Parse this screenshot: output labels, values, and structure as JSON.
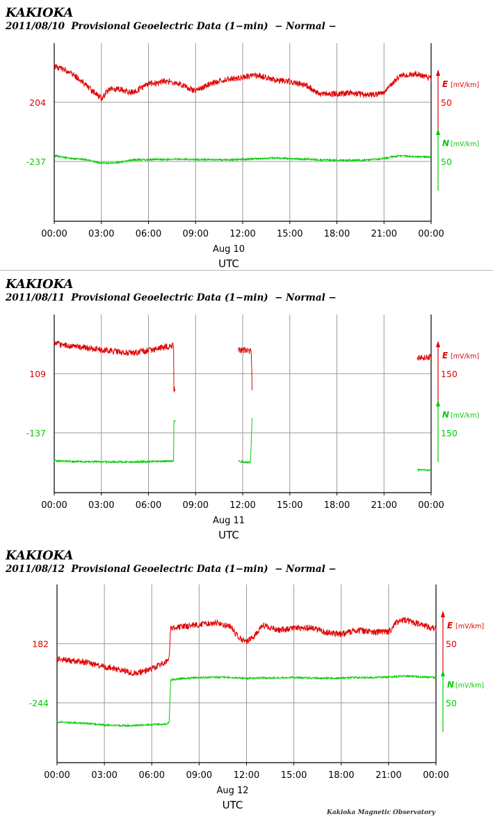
{
  "credit": "Kakioka Magnetic Observatory",
  "chart_data": [
    {
      "type": "line",
      "station": "KAKIOKA",
      "title": "2011/08/10  Provisional Geoelectric Data (1−min)  − Normal −",
      "x_ticks": [
        "00:00",
        "03:00",
        "06:00",
        "09:00",
        "12:00",
        "15:00",
        "18:00",
        "21:00",
        "00:00"
      ],
      "date_label": "Aug 10",
      "xlabel": "UTC",
      "xlim_hours": [
        0,
        24
      ],
      "grid": true,
      "series": [
        {
          "name": "E",
          "unit": "[mV/km]",
          "color": "#e00000",
          "baseline_label": "204",
          "scale_label": "50",
          "gap_hours": [],
          "x_hours": [
            0,
            1,
            2,
            3,
            3.5,
            4,
            5,
            6,
            7,
            8,
            9,
            10,
            11,
            12,
            13,
            14,
            15,
            16,
            17,
            18,
            19,
            20,
            21,
            22,
            23,
            24
          ],
          "values": [
            95,
            80,
            45,
            10,
            35,
            35,
            25,
            48,
            55,
            48,
            30,
            50,
            60,
            65,
            70,
            58,
            55,
            45,
            20,
            22,
            24,
            18,
            25,
            70,
            75,
            62
          ]
        },
        {
          "name": "N",
          "unit": "[mV/km]",
          "color": "#00cc00",
          "baseline_label": "-237",
          "scale_label": "50",
          "gap_hours": [],
          "x_hours": [
            0,
            1,
            2,
            3,
            4,
            5,
            6,
            7,
            8,
            9,
            10,
            11,
            12,
            13,
            14,
            15,
            16,
            17,
            18,
            19,
            20,
            21,
            22,
            23,
            24
          ],
          "values": [
            15,
            8,
            5,
            -5,
            -3,
            4,
            5,
            5,
            6,
            5,
            5,
            4,
            6,
            7,
            9,
            7,
            6,
            4,
            3,
            3,
            4,
            8,
            15,
            12,
            12
          ]
        }
      ]
    },
    {
      "type": "line",
      "station": "KAKIOKA",
      "title": "2011/08/11  Provisional Geoelectric Data (1−min)  − Normal −",
      "x_ticks": [
        "00:00",
        "03:00",
        "06:00",
        "09:00",
        "12:00",
        "15:00",
        "18:00",
        "21:00",
        "00:00"
      ],
      "date_label": "Aug 11",
      "xlabel": "UTC",
      "xlim_hours": [
        0,
        24
      ],
      "grid": true,
      "series": [
        {
          "name": "E",
          "unit": "[mV/km]",
          "color": "#e00000",
          "baseline_label": "109",
          "scale_label": "150",
          "gap_hours": [
            [
              7.7,
              11.7
            ],
            [
              12.6,
              23.1
            ]
          ],
          "x_hours": [
            0,
            1,
            2,
            3,
            4,
            5,
            6,
            7,
            7.6,
            7.62,
            11.7,
            12.5,
            12.55,
            12.6,
            23.1,
            23.5,
            24
          ],
          "values": [
            113,
            105,
            98,
            90,
            82,
            78,
            88,
            100,
            108,
            -60,
            90,
            85,
            88,
            -60,
            60,
            60,
            63
          ]
        },
        {
          "name": "N",
          "unit": "[mV/km]",
          "color": "#00cc00",
          "baseline_label": "-137",
          "scale_label": "150",
          "gap_hours": [
            [
              7.7,
              11.7
            ],
            [
              12.6,
              23.1
            ]
          ],
          "x_hours": [
            0,
            1,
            2,
            3,
            4,
            5,
            6,
            7,
            7.6,
            7.62,
            11.7,
            12.4,
            12.5,
            12.6,
            23.1,
            24
          ],
          "values": [
            -106,
            -108,
            -109,
            -110,
            -110,
            -110,
            -109,
            -108,
            -107,
            46,
            -108,
            -112,
            -112,
            56,
            -140,
            -142
          ]
        }
      ]
    },
    {
      "type": "line",
      "station": "KAKIOKA",
      "title": "2011/08/12  Provisional Geoelectric Data (1−min)  − Normal −",
      "x_ticks": [
        "00:00",
        "03:00",
        "06:00",
        "09:00",
        "12:00",
        "15:00",
        "18:00",
        "21:00",
        "00:00"
      ],
      "date_label": "Aug 12",
      "xlabel": "UTC",
      "xlim_hours": [
        0,
        24
      ],
      "grid": true,
      "series": [
        {
          "name": "E",
          "unit": "[mV/km]",
          "color": "#e00000",
          "baseline_label": "182",
          "scale_label": "50",
          "gap_hours": [],
          "x_hours": [
            0,
            1,
            2,
            3,
            4,
            5,
            6,
            7,
            7.1,
            7.2,
            8,
            9,
            10,
            11,
            11.5,
            12,
            12.5,
            13,
            14,
            15,
            16,
            17,
            18,
            19,
            20,
            21,
            21.5,
            22,
            23,
            24
          ],
          "values": [
            -40,
            -45,
            -50,
            -60,
            -68,
            -78,
            -65,
            -45,
            -30,
            40,
            45,
            50,
            55,
            45,
            15,
            5,
            20,
            50,
            35,
            40,
            42,
            30,
            25,
            35,
            30,
            30,
            55,
            62,
            50,
            38
          ]
        },
        {
          "name": "N",
          "unit": "[mV/km]",
          "color": "#00cc00",
          "baseline_label": "-244",
          "scale_label": "50",
          "gap_hours": [],
          "x_hours": [
            0,
            1,
            2,
            3,
            4,
            5,
            6,
            7,
            7.1,
            7.2,
            8,
            9,
            10,
            11,
            12,
            13,
            14,
            15,
            16,
            17,
            18,
            19,
            20,
            21,
            22,
            23,
            24
          ],
          "values": [
            -50,
            -52,
            -54,
            -58,
            -60,
            -59,
            -57,
            -55,
            -50,
            60,
            64,
            66,
            67,
            66,
            64,
            65,
            65,
            66,
            65,
            64,
            65,
            66,
            66,
            67,
            70,
            68,
            66
          ]
        }
      ]
    }
  ]
}
